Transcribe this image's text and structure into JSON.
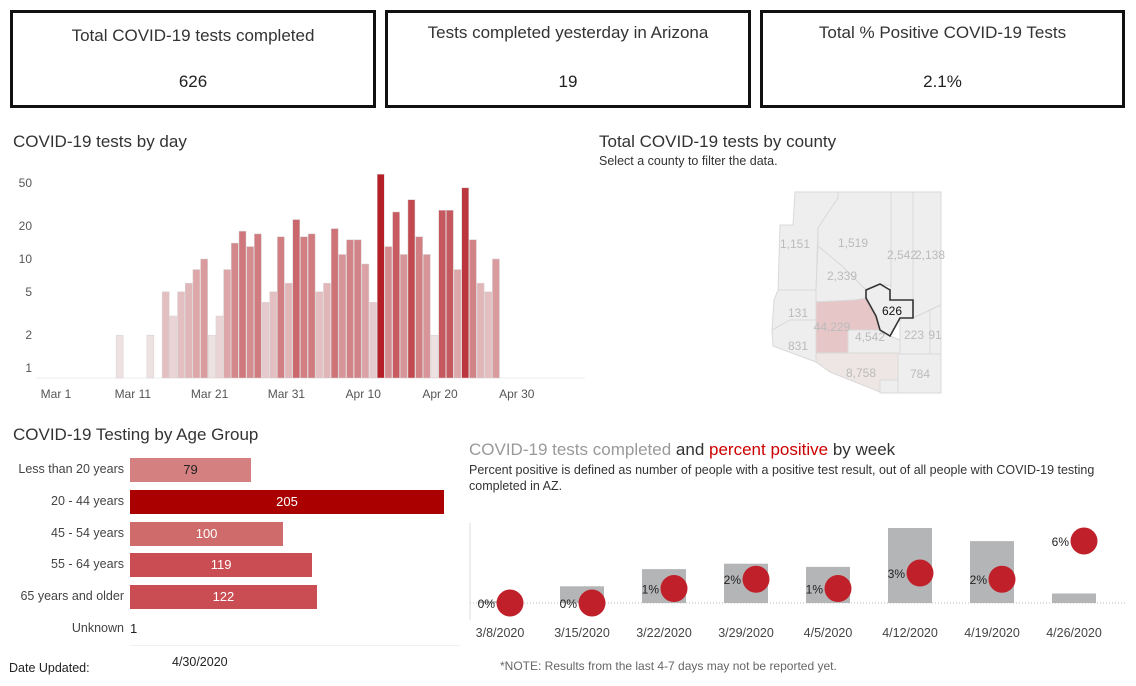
{
  "kpis": [
    {
      "title": "Total COVID-19 tests completed",
      "value": "626"
    },
    {
      "title": "Tests completed yesterday in Arizona",
      "value": "19"
    },
    {
      "title": "Total % Positive COVID-19 Tests",
      "value": "2.1%"
    }
  ],
  "daily": {
    "title": "COVID-19 tests by day",
    "chart_data": {
      "type": "bar",
      "yscale": "log",
      "ylim": [
        0.8,
        60
      ],
      "yticks": [
        1,
        2,
        5,
        10,
        20,
        50
      ],
      "xticks": [
        "Mar 1",
        "Mar 11",
        "Mar 21",
        "Mar 31",
        "Apr 10",
        "Apr 20",
        "Apr 30"
      ],
      "dates": [
        "Mar 10",
        "Mar 14",
        "Mar 16",
        "Mar 17",
        "Mar 18",
        "Mar 19",
        "Mar 20",
        "Mar 21",
        "Mar 22",
        "Mar 23",
        "Mar 24",
        "Mar 25",
        "Mar 26",
        "Mar 27",
        "Mar 28",
        "Mar 29",
        "Mar 30",
        "Mar 31",
        "Apr 1",
        "Apr 2",
        "Apr 3",
        "Apr 4",
        "Apr 5",
        "Apr 6",
        "Apr 7",
        "Apr 8",
        "Apr 9",
        "Apr 10",
        "Apr 11",
        "Apr 12",
        "Apr 13",
        "Apr 14",
        "Apr 15",
        "Apr 16",
        "Apr 17",
        "Apr 18",
        "Apr 19",
        "Apr 20",
        "Apr 21",
        "Apr 22",
        "Apr 23",
        "Apr 24",
        "Apr 25",
        "Apr 26",
        "Apr 27",
        "Apr 28"
      ],
      "values": [
        2,
        2,
        5,
        3,
        5,
        6,
        8,
        10,
        2,
        3,
        8,
        14,
        18,
        13,
        17,
        4,
        5,
        16,
        6,
        23,
        16,
        17,
        5,
        6,
        19,
        11,
        15,
        15,
        9,
        4,
        60,
        13,
        27,
        11,
        35,
        16,
        11,
        2,
        28,
        28,
        8,
        45,
        15,
        6,
        5,
        10
      ],
      "colors": {
        "low": "#f1eded",
        "high": "#b51f27"
      }
    }
  },
  "county": {
    "title": "Total COVID-19 tests by county",
    "subtitle": "Select a county to filter the data.",
    "counties": [
      {
        "label": "1,151"
      },
      {
        "label": "1,519"
      },
      {
        "label": "2,542"
      },
      {
        "label": "2,138"
      },
      {
        "label": "2,339"
      },
      {
        "label": "131"
      },
      {
        "label": "831"
      },
      {
        "label": "44,229"
      },
      {
        "label": "626"
      },
      {
        "label": "4,542"
      },
      {
        "label": "223"
      },
      {
        "label": "91"
      },
      {
        "label": "8,758"
      },
      {
        "label": ""
      },
      {
        "label": "784"
      }
    ],
    "colors": {
      "default": "#efeeee",
      "maricopa": "#e6c6c6",
      "pima": "#eee6e4",
      "selected_border": "#333333"
    }
  },
  "age": {
    "title": "COVID-19 Testing by Age Group",
    "chart_data": {
      "type": "bar",
      "orientation": "horizontal",
      "categories": [
        "Less than 20 years",
        "20 - 44 years",
        "45 - 54 years",
        "55 - 64 years",
        "65 years and older",
        "Unknown"
      ],
      "values": [
        79,
        205,
        100,
        119,
        122,
        1
      ],
      "colors": [
        "#d58080",
        "#aa0000",
        "#d06b6b",
        "#c94d52",
        "#c94d52",
        "#e8c0c0"
      ]
    },
    "date_updated_label": "Date Updated:",
    "date_updated": "4/30/2020"
  },
  "weekly": {
    "title_part1": "COVID-19 tests completed",
    "title_part2": " and ",
    "title_part3": "percent positive",
    "title_part4": " by week",
    "subtitle": "Percent positive is defined as number of people with a positive test result, out of all people with COVID-19 testing completed in AZ.",
    "chart_data": {
      "type": "bar+scatter",
      "categories": [
        "3/8/2020",
        "3/15/2020",
        "3/22/2020",
        "3/29/2020",
        "4/5/2020",
        "4/12/2020",
        "4/19/2020",
        "4/26/2020"
      ],
      "tests": [
        4,
        37,
        75,
        87,
        80,
        166,
        137,
        21
      ],
      "percent_positive": [
        0,
        0,
        1.4,
        2.3,
        1.4,
        2.9,
        2.3,
        6.0
      ],
      "percent_labels": [
        "0%",
        "0%",
        "1%",
        "2%",
        "1%",
        "3%",
        "2%",
        "6%"
      ],
      "colors": {
        "bar": "#b4b5b6",
        "dot": "#c0202a"
      }
    },
    "note": "*NOTE: Results from the last 4-7 days may not be reported yet."
  }
}
